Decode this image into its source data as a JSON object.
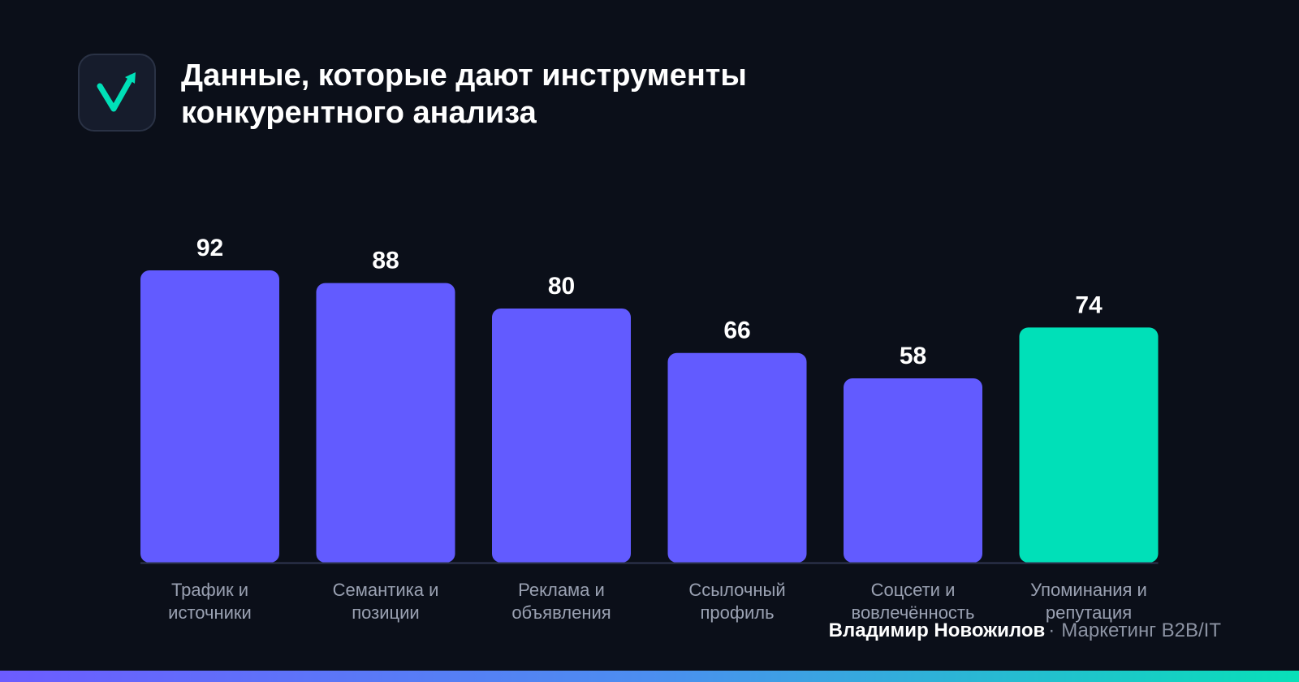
{
  "header": {
    "logo_icon": "check-arrow-icon",
    "title_lines": [
      "Данные, которые дают инструменты",
      "конкурентного анализа"
    ]
  },
  "chart_data": {
    "type": "bar",
    "categories": [
      [
        "Трафик и",
        "источники"
      ],
      [
        "Семантика и",
        "позиции"
      ],
      [
        "Реклама и",
        "объявления"
      ],
      [
        "Ссылочный",
        "профиль"
      ],
      [
        "Соцсети и",
        "вовлечённость"
      ],
      [
        "Упоминания и",
        "репутация"
      ]
    ],
    "values": [
      92,
      88,
      80,
      66,
      58,
      74
    ],
    "value_labels": [
      "92",
      "88",
      "80",
      "66",
      "58",
      "74"
    ],
    "highlighted_index": 5,
    "ylim": [
      0,
      92
    ],
    "grid": false,
    "colors": {
      "bar": "#625bff",
      "highlight": "#00e0b8",
      "baseline": "#2f3650",
      "category_text": "#9aa1b2",
      "value_text": "#ffffff"
    }
  },
  "footer": {
    "author": "Владимир Новожилов",
    "separator": "·",
    "tagline": "Маркетинг B2B/IT"
  },
  "colors": {
    "background": "#0b0f19",
    "logo_bg": "#161c2c",
    "accent": "#00e0b8",
    "bottom_gradient": [
      "#6c5cff",
      "#4c8ef0",
      "#08e0b8"
    ]
  }
}
